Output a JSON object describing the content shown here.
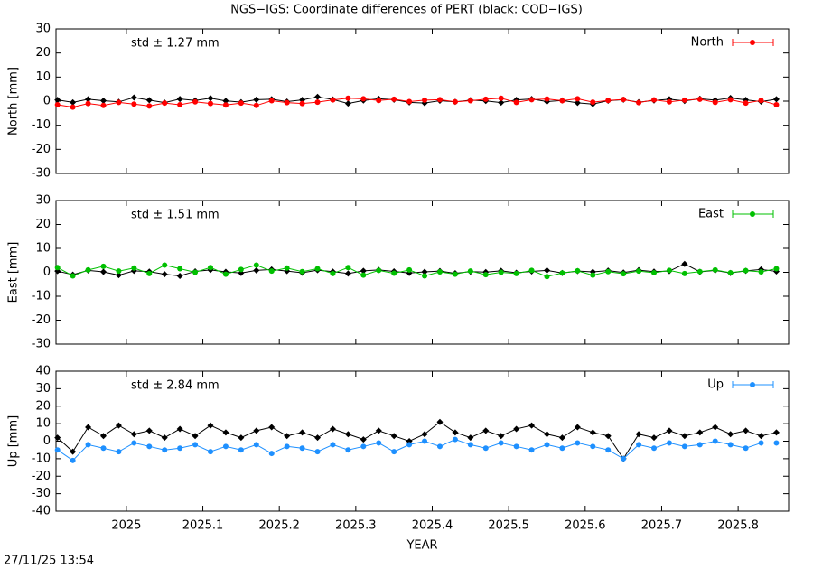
{
  "title": "NGS−IGS: Coordinate differences of PERT (black: COD−IGS)",
  "timestamp": "27/11/25 13:54",
  "chart_data": [
    {
      "type": "line",
      "y_label": "North [mm]",
      "annotation": "std ± 1.27 mm",
      "legend": "top right",
      "xlim": [
        2024.908,
        2025.866
      ],
      "xticks": [
        2025,
        2025.1,
        2025.2,
        2025.3,
        2025.4,
        2025.5,
        2025.6,
        2025.7,
        2025.8
      ],
      "ylim": [
        -30,
        30
      ],
      "yticks": [
        -30,
        -20,
        -10,
        0,
        10,
        20,
        30
      ],
      "x": [
        2024.91,
        2024.93,
        2024.95,
        2024.97,
        2024.99,
        2025.01,
        2025.03,
        2025.05,
        2025.07,
        2025.09,
        2025.11,
        2025.13,
        2025.15,
        2025.17,
        2025.19,
        2025.21,
        2025.23,
        2025.25,
        2025.27,
        2025.29,
        2025.31,
        2025.33,
        2025.35,
        2025.37,
        2025.39,
        2025.41,
        2025.43,
        2025.45,
        2025.47,
        2025.49,
        2025.51,
        2025.53,
        2025.55,
        2025.57,
        2025.59,
        2025.61,
        2025.63,
        2025.65,
        2025.67,
        2025.69,
        2025.71,
        2025.73,
        2025.75,
        2025.77,
        2025.79,
        2025.81,
        2025.83,
        2025.85
      ],
      "series": [
        {
          "color": "#000000",
          "values": [
            0.5,
            -0.5,
            0.8,
            0.2,
            -0.3,
            1.5,
            0.4,
            -0.6,
            0.9,
            0.3,
            1.2,
            0.1,
            -0.4,
            0.6,
            0.8,
            -0.2,
            0.5,
            1.8,
            0.7,
            -1.0,
            0.3,
            1.0,
            0.6,
            -0.5,
            -0.8,
            0.2,
            -0.3,
            0.4,
            0.1,
            -0.6,
            0.5,
            0.9,
            -0.2,
            0.3,
            -0.7,
            -1.2,
            0.2,
            0.6,
            -0.4,
            0.3,
            0.8,
            0.1,
            1.0,
            0.4,
            1.3,
            0.5,
            -0.2,
            0.8
          ]
        },
        {
          "name": "North",
          "color": "#ff0000",
          "values": [
            -1.5,
            -2.5,
            -1.0,
            -1.8,
            -0.5,
            -1.2,
            -2.0,
            -0.8,
            -1.5,
            -0.3,
            -1.0,
            -1.6,
            -0.8,
            -1.8,
            0.2,
            -0.6,
            -1.0,
            -0.4,
            0.5,
            1.2,
            1.0,
            0.3,
            0.8,
            -0.2,
            0.4,
            0.6,
            -0.3,
            0.2,
            0.8,
            1.2,
            -0.5,
            0.6,
            0.9,
            0.2,
            1.0,
            -0.4,
            0.3,
            0.7,
            -0.6,
            0.5,
            -0.3,
            0.4,
            0.8,
            -0.5,
            0.6,
            -0.8,
            0.3,
            -1.5
          ]
        }
      ]
    },
    {
      "type": "line",
      "y_label": "East [mm]",
      "annotation": "std ± 1.51 mm",
      "legend": "top right",
      "xlim": [
        2024.908,
        2025.866
      ],
      "xticks": [
        2025,
        2025.1,
        2025.2,
        2025.3,
        2025.4,
        2025.5,
        2025.6,
        2025.7,
        2025.8
      ],
      "ylim": [
        -30,
        30
      ],
      "yticks": [
        -30,
        -20,
        -10,
        0,
        10,
        20,
        30
      ],
      "x": [
        2024.91,
        2024.93,
        2024.95,
        2024.97,
        2024.99,
        2025.01,
        2025.03,
        2025.05,
        2025.07,
        2025.09,
        2025.11,
        2025.13,
        2025.15,
        2025.17,
        2025.19,
        2025.21,
        2025.23,
        2025.25,
        2025.27,
        2025.29,
        2025.31,
        2025.33,
        2025.35,
        2025.37,
        2025.39,
        2025.41,
        2025.43,
        2025.45,
        2025.47,
        2025.49,
        2025.51,
        2025.53,
        2025.55,
        2025.57,
        2025.59,
        2025.61,
        2025.63,
        2025.65,
        2025.67,
        2025.69,
        2025.71,
        2025.73,
        2025.75,
        2025.77,
        2025.79,
        2025.81,
        2025.83,
        2025.85
      ],
      "series": [
        {
          "color": "#000000",
          "values": [
            0.5,
            -1.0,
            0.8,
            0.2,
            -1.2,
            0.6,
            0.3,
            -0.8,
            -1.5,
            0.4,
            1.0,
            0.2,
            -0.3,
            0.8,
            1.2,
            0.5,
            -0.2,
            0.9,
            0.3,
            -0.5,
            0.6,
            1.0,
            0.4,
            -0.3,
            0.2,
            0.5,
            -0.4,
            0.3,
            0.1,
            0.6,
            -0.2,
            0.4,
            0.8,
            -0.3,
            0.5,
            0.2,
            0.7,
            -0.1,
            0.9,
            0.3,
            0.5,
            3.5,
            0.2,
            0.8,
            -0.3,
            0.6,
            1.2,
            0.4
          ]
        },
        {
          "name": "East",
          "color": "#00c000",
          "values": [
            2.0,
            -1.5,
            1.0,
            2.5,
            0.5,
            1.8,
            -0.5,
            3.0,
            1.5,
            0.0,
            2.0,
            -0.8,
            1.2,
            3.0,
            0.5,
            1.8,
            0.3,
            1.5,
            -0.5,
            2.0,
            -1.2,
            0.8,
            -0.4,
            1.0,
            -1.5,
            0.2,
            -0.8,
            0.5,
            -1.0,
            0.0,
            -0.5,
            0.8,
            -1.8,
            -0.3,
            0.6,
            -1.2,
            0.3,
            -0.6,
            0.5,
            -0.2,
            0.8,
            -0.5,
            0.3,
            1.0,
            -0.2,
            0.7,
            0.2,
            1.5
          ]
        }
      ]
    },
    {
      "type": "line",
      "y_label": "Up [mm]",
      "x_label": "YEAR",
      "annotation": "std ± 2.84 mm",
      "legend": "top right",
      "xlim": [
        2024.908,
        2025.866
      ],
      "xticks": [
        2025,
        2025.1,
        2025.2,
        2025.3,
        2025.4,
        2025.5,
        2025.6,
        2025.7,
        2025.8
      ],
      "ylim": [
        -40,
        40
      ],
      "yticks": [
        -40,
        -30,
        -20,
        -10,
        0,
        10,
        20,
        30,
        40
      ],
      "x": [
        2024.91,
        2024.93,
        2024.95,
        2024.97,
        2024.99,
        2025.01,
        2025.03,
        2025.05,
        2025.07,
        2025.09,
        2025.11,
        2025.13,
        2025.15,
        2025.17,
        2025.19,
        2025.21,
        2025.23,
        2025.25,
        2025.27,
        2025.29,
        2025.31,
        2025.33,
        2025.35,
        2025.37,
        2025.39,
        2025.41,
        2025.43,
        2025.45,
        2025.47,
        2025.49,
        2025.51,
        2025.53,
        2025.55,
        2025.57,
        2025.59,
        2025.61,
        2025.63,
        2025.65,
        2025.67,
        2025.69,
        2025.71,
        2025.73,
        2025.75,
        2025.77,
        2025.79,
        2025.81,
        2025.83,
        2025.85
      ],
      "series": [
        {
          "color": "#000000",
          "values": [
            2,
            -6,
            8,
            3,
            9,
            4,
            6,
            2,
            7,
            3,
            9,
            5,
            2,
            6,
            8,
            3,
            5,
            2,
            7,
            4,
            1,
            6,
            3,
            0,
            4,
            11,
            5,
            2,
            6,
            3,
            7,
            9,
            4,
            2,
            8,
            5,
            3,
            -10,
            4,
            2,
            6,
            3,
            5,
            8,
            4,
            6,
            3,
            5
          ]
        },
        {
          "name": "Up",
          "color": "#1e90ff",
          "values": [
            -5,
            -11,
            -2,
            -4,
            -6,
            -1,
            -3,
            -5,
            -4,
            -2,
            -6,
            -3,
            -5,
            -2,
            -7,
            -3,
            -4,
            -6,
            -2,
            -5,
            -3,
            -1,
            -6,
            -2,
            0,
            -3,
            1,
            -2,
            -4,
            -1,
            -3,
            -5,
            -2,
            -4,
            -1,
            -3,
            -5,
            -10,
            -2,
            -4,
            -1,
            -3,
            -2,
            0,
            -2,
            -4,
            -1,
            -1
          ]
        }
      ]
    }
  ]
}
